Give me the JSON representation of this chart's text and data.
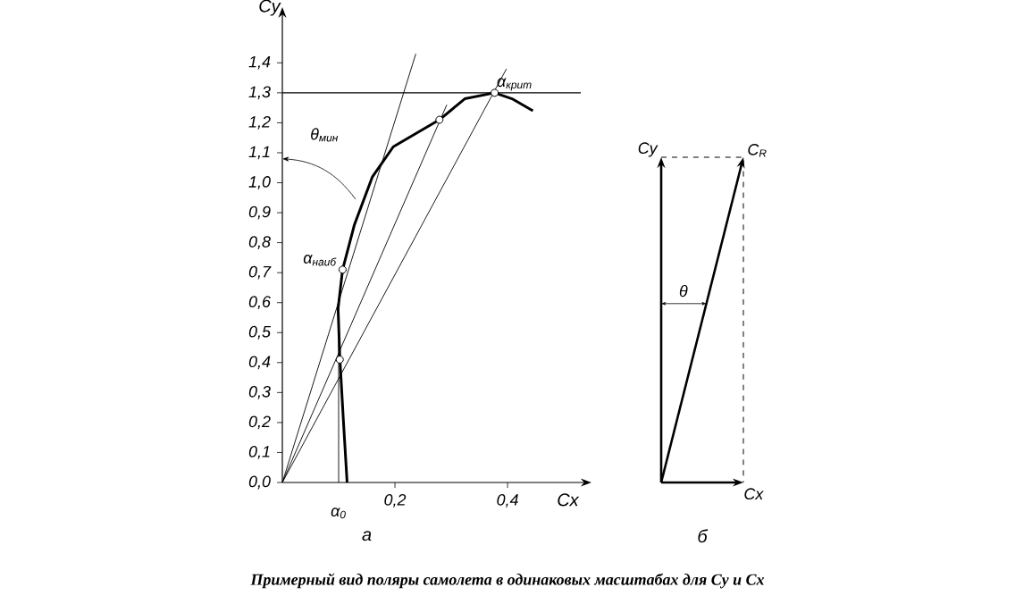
{
  "chart_data": [
    {
      "type": "line",
      "xlabel": "Cx",
      "ylabel": "Cy",
      "subtitle": "а",
      "xlim": [
        0,
        0.53
      ],
      "ylim": [
        0,
        1.55
      ],
      "xticks": [
        {
          "value": 0.2,
          "label": "0,2"
        },
        {
          "value": 0.4,
          "label": "0,4"
        }
      ],
      "yticks": [
        {
          "value": 0,
          "label": "0,0"
        },
        {
          "value": 0.1,
          "label": "0,1"
        },
        {
          "value": 0.2,
          "label": "0,2"
        },
        {
          "value": 0.3,
          "label": "0,3"
        },
        {
          "value": 0.4,
          "label": "0,4"
        },
        {
          "value": 0.5,
          "label": "0,5"
        },
        {
          "value": 0.6,
          "label": "0,6"
        },
        {
          "value": 0.7,
          "label": "0,7"
        },
        {
          "value": 0.8,
          "label": "0,8"
        },
        {
          "value": 0.9,
          "label": "0,9"
        },
        {
          "value": 1.0,
          "label": "1,0"
        },
        {
          "value": 1.1,
          "label": "1,1"
        },
        {
          "value": 1.2,
          "label": "1,2"
        },
        {
          "value": 1.3,
          "label": "1,3"
        },
        {
          "value": 1.4,
          "label": "1,4"
        }
      ],
      "series": [
        {
          "type": "line",
          "color": "#000000",
          "x": [
            0.115,
            0.108,
            0.102,
            0.099,
            0.107,
            0.128,
            0.16,
            0.197,
            0.279,
            0.324,
            0.377,
            0.408,
            0.445
          ],
          "values": [
            0,
            0.22,
            0.42,
            0.58,
            0.71,
            0.86,
            1.02,
            1.12,
            1.21,
            1.28,
            1.3,
            1.28,
            1.24
          ]
        },
        {
          "type": "line",
          "color": "#000000",
          "x": [
            0,
            0.237
          ],
          "values": [
            0,
            1.43
          ]
        },
        {
          "type": "line",
          "color": "#000000",
          "x": [
            0,
            0.292
          ],
          "values": [
            0,
            1.26
          ]
        },
        {
          "type": "line",
          "color": "#000000",
          "x": [
            0,
            0.398
          ],
          "values": [
            0,
            1.38
          ]
        },
        {
          "type": "line",
          "color": "#000000",
          "x": [
            0.1,
            0.1
          ],
          "values": [
            0,
            0.6
          ]
        },
        {
          "type": "scatter",
          "color": "#ffffff",
          "marker": "circle",
          "x": [
            0.102,
            0.107,
            0.279,
            0.377
          ],
          "values": [
            0.41,
            0.71,
            1.21,
            1.3
          ]
        }
      ],
      "ref_lines": [
        {
          "axis": "y",
          "value": 1.3
        }
      ],
      "annotations": [
        {
          "text": "α$_{крит}$",
          "x": 0.377,
          "y": 1.3
        },
        {
          "text": "α$_{наиб}$",
          "x": 0.107,
          "y": 0.71
        },
        {
          "text": "α$_{0}$",
          "x": 0.1,
          "y": 0
        },
        "θ$_{мин}$",
        "Примерный вид поляры самолета в одинаковых масштабах для Cy и Cx"
      ]
    },
    {
      "type": "other",
      "subtitle": "б",
      "annotations": [
        "Cy",
        "C$_{R}$",
        "Cx",
        "θ"
      ]
    }
  ]
}
